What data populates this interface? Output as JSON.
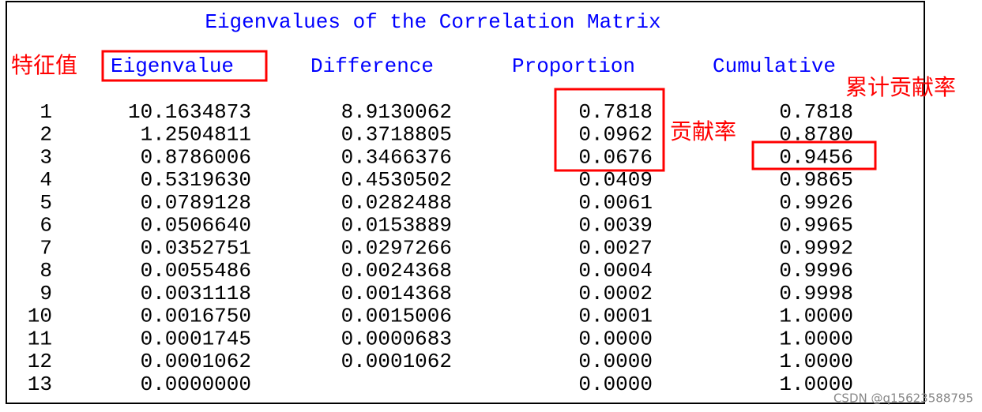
{
  "title": "Eigenvalues of the Correlation Matrix",
  "table": {
    "headers": [
      "Eigenvalue",
      "Difference",
      "Proportion",
      "Cumulative"
    ],
    "rows": [
      [
        "1",
        "10.1634873",
        "8.9130062",
        "0.7818",
        "0.7818"
      ],
      [
        "2",
        "1.2504811",
        "0.3718805",
        "0.0962",
        "0.8780"
      ],
      [
        "3",
        "0.8786006",
        "0.3466376",
        "0.0676",
        "0.9456"
      ],
      [
        "4",
        "0.5319630",
        "0.4530502",
        "0.0409",
        "0.9865"
      ],
      [
        "5",
        "0.0789128",
        "0.0282488",
        "0.0061",
        "0.9926"
      ],
      [
        "6",
        "0.0506640",
        "0.0153889",
        "0.0039",
        "0.9965"
      ],
      [
        "7",
        "0.0352751",
        "0.0297266",
        "0.0027",
        "0.9992"
      ],
      [
        "8",
        "0.0055486",
        "0.0024368",
        "0.0004",
        "0.9996"
      ],
      [
        "9",
        "0.0031118",
        "0.0014368",
        "0.0002",
        "0.9998"
      ],
      [
        "10",
        "0.0016750",
        "0.0015006",
        "0.0001",
        "1.0000"
      ],
      [
        "11",
        "0.0001745",
        "0.0000683",
        "0.0000",
        "1.0000"
      ],
      [
        "12",
        "0.0001062",
        "0.0001062",
        "0.0000",
        "1.0000"
      ],
      [
        "13",
        "0.0000000",
        null,
        "0.0000",
        "1.0000"
      ]
    ]
  },
  "annotations": {
    "eigenvalue": "特征值",
    "proportion": "贡献率",
    "cumulative": "累计贡献率"
  },
  "watermark": "CSDN @q15623588795"
}
